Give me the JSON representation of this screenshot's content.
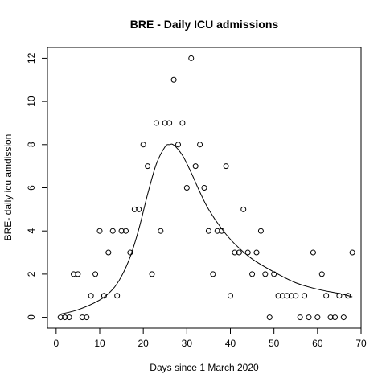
{
  "chart_data": {
    "type": "scatter",
    "title": "BRE - Daily ICU admissions",
    "xlabel": "Days since 1 March 2020",
    "ylabel": "BRE- daily icu amdission",
    "xlim": [
      -2,
      70
    ],
    "ylim": [
      -0.5,
      12.5
    ],
    "xticks": [
      0,
      10,
      20,
      30,
      40,
      50,
      60,
      70
    ],
    "yticks": [
      0,
      2,
      4,
      6,
      8,
      10,
      12
    ],
    "grid": false,
    "legend": "none",
    "points": [
      [
        1,
        0
      ],
      [
        2,
        0
      ],
      [
        3,
        0
      ],
      [
        4,
        2
      ],
      [
        5,
        2
      ],
      [
        6,
        0
      ],
      [
        7,
        0
      ],
      [
        8,
        1
      ],
      [
        9,
        2
      ],
      [
        10,
        4
      ],
      [
        11,
        1
      ],
      [
        12,
        3
      ],
      [
        13,
        4
      ],
      [
        14,
        1
      ],
      [
        15,
        4
      ],
      [
        16,
        4
      ],
      [
        17,
        3
      ],
      [
        18,
        5
      ],
      [
        19,
        5
      ],
      [
        20,
        8
      ],
      [
        21,
        7
      ],
      [
        22,
        2
      ],
      [
        23,
        9
      ],
      [
        24,
        4
      ],
      [
        25,
        9
      ],
      [
        26,
        9
      ],
      [
        27,
        11
      ],
      [
        28,
        8
      ],
      [
        29,
        9
      ],
      [
        30,
        6
      ],
      [
        31,
        12
      ],
      [
        32,
        7
      ],
      [
        33,
        8
      ],
      [
        34,
        6
      ],
      [
        35,
        4
      ],
      [
        36,
        2
      ],
      [
        37,
        4
      ],
      [
        38,
        4
      ],
      [
        39,
        7
      ],
      [
        40,
        1
      ],
      [
        41,
        3
      ],
      [
        42,
        3
      ],
      [
        43,
        5
      ],
      [
        44,
        3
      ],
      [
        45,
        2
      ],
      [
        46,
        3
      ],
      [
        47,
        4
      ],
      [
        48,
        2
      ],
      [
        49,
        0
      ],
      [
        50,
        2
      ],
      [
        51,
        1
      ],
      [
        52,
        1
      ],
      [
        53,
        1
      ],
      [
        54,
        1
      ],
      [
        55,
        1
      ],
      [
        56,
        0
      ],
      [
        57,
        1
      ],
      [
        58,
        0
      ],
      [
        59,
        3
      ],
      [
        60,
        0
      ],
      [
        61,
        2
      ],
      [
        62,
        1
      ],
      [
        63,
        0
      ],
      [
        64,
        0
      ],
      [
        65,
        1
      ],
      [
        66,
        0
      ],
      [
        67,
        1
      ],
      [
        68,
        3
      ]
    ],
    "fit_line": [
      [
        1,
        0.15
      ],
      [
        5,
        0.35
      ],
      [
        10,
        0.8
      ],
      [
        13,
        1.3
      ],
      [
        15,
        1.9
      ],
      [
        17,
        2.8
      ],
      [
        19,
        4.1
      ],
      [
        21,
        5.7
      ],
      [
        23,
        7.1
      ],
      [
        25,
        7.9
      ],
      [
        26,
        8.0
      ],
      [
        27,
        7.98
      ],
      [
        29,
        7.5
      ],
      [
        31,
        6.7
      ],
      [
        33,
        5.8
      ],
      [
        35,
        5.0
      ],
      [
        38,
        4.1
      ],
      [
        41,
        3.4
      ],
      [
        45,
        2.7
      ],
      [
        50,
        2.1
      ],
      [
        55,
        1.6
      ],
      [
        60,
        1.3
      ],
      [
        65,
        1.1
      ],
      [
        68,
        0.95
      ]
    ]
  }
}
